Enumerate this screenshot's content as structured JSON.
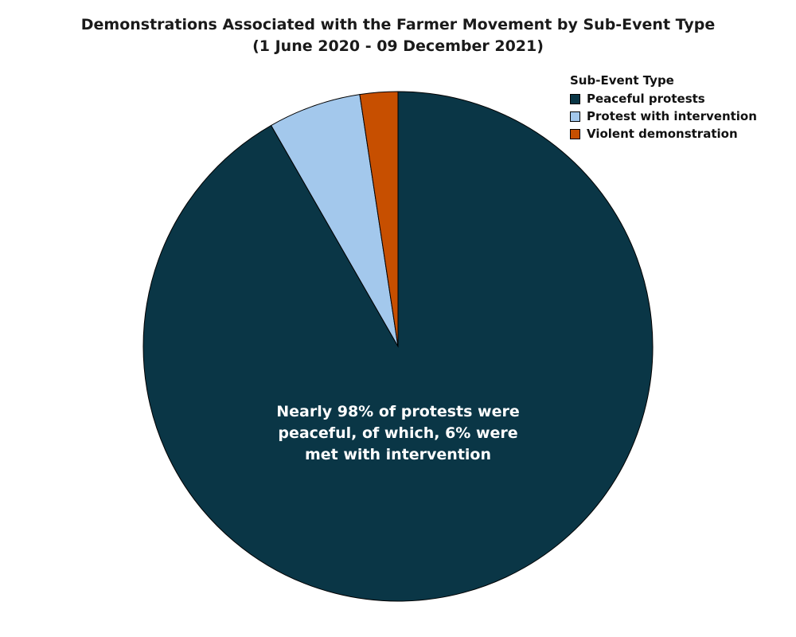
{
  "chart_data": {
    "type": "pie",
    "title": "Demonstrations Associated with the Farmer Movement by Sub-Event Type",
    "subtitle": "(1 June 2020 - 09 December 2021)",
    "legend_title": "Sub-Event Type",
    "legend_placement": "top-right",
    "series": [
      {
        "name": "Peaceful protests",
        "value": 91.7,
        "color": "#0a3646"
      },
      {
        "name": "Protest with intervention",
        "value": 5.9,
        "color": "#a3c8ec"
      },
      {
        "name": "Violent demonstration",
        "value": 2.4,
        "color": "#c74f00"
      }
    ],
    "annotation": "Nearly 98% of protests were peaceful, of which, 6% were met with intervention"
  }
}
